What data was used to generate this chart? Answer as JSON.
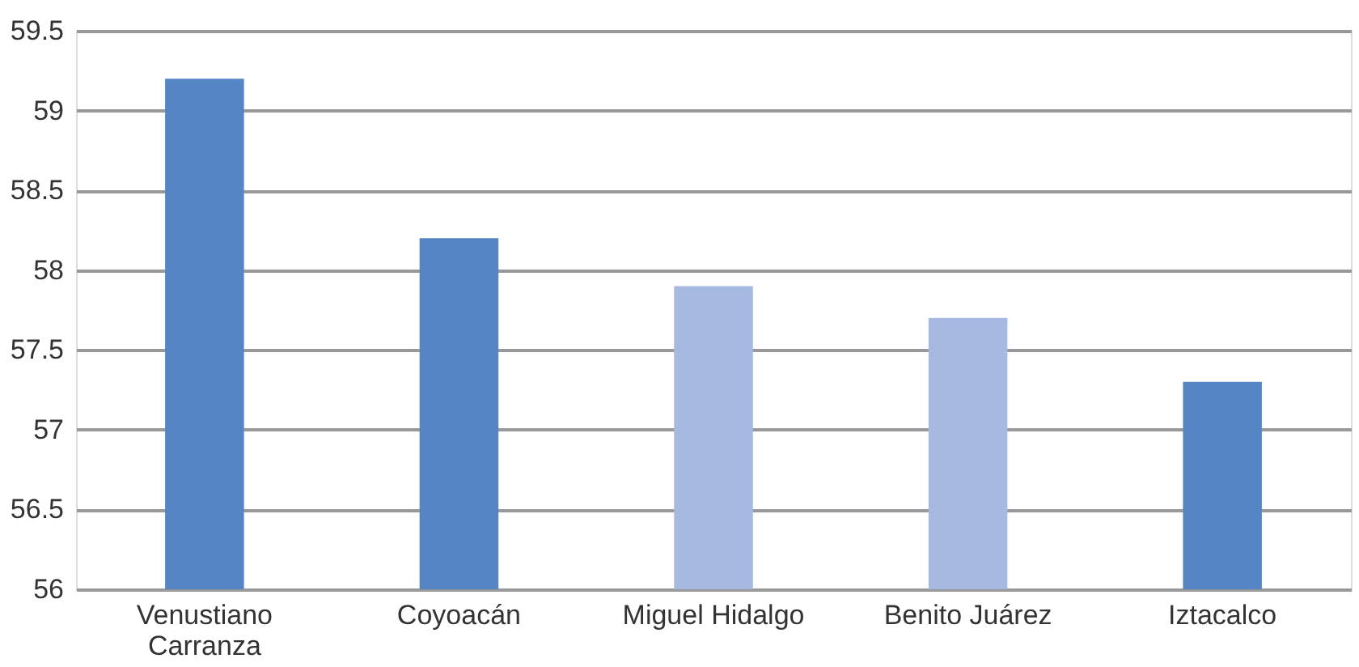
{
  "chart_data": {
    "type": "bar",
    "categories": [
      "Venustiano Carranza",
      "Coyoacán",
      "Miguel Hidalgo",
      "Benito Juárez",
      "Iztacalco"
    ],
    "values": [
      59.2,
      58.2,
      57.9,
      57.7,
      57.3
    ],
    "colors": [
      "#5585c4",
      "#5585c4",
      "#a6b9e0",
      "#a6b9e0",
      "#5585c4"
    ],
    "ylim": [
      56,
      59.5
    ],
    "yticks": [
      56,
      56.5,
      57,
      57.5,
      58,
      58.5,
      59,
      59.5
    ],
    "grid": "y"
  }
}
